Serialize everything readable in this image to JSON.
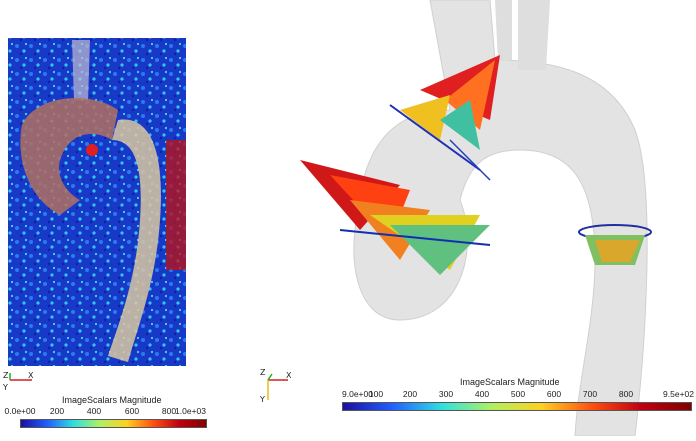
{
  "left_panel": {
    "colorbar": {
      "title": "ImageScalars Magnitude",
      "ticks": [
        "0.0e+00",
        "200",
        "400",
        "600",
        "800",
        "1.0e+03"
      ],
      "gradient": [
        "#1a10a0",
        "#2060ff",
        "#30e0e0",
        "#b0f060",
        "#ffd020",
        "#ff5010",
        "#c00010",
        "#800000"
      ]
    },
    "axes": {
      "x": "X",
      "y": "Y",
      "z": "Z"
    }
  },
  "right_panel": {
    "colorbar": {
      "title": "ImageScalars Magnitude",
      "ticks": [
        "9.0e+00",
        "100",
        "200",
        "300",
        "400",
        "500",
        "600",
        "700",
        "800",
        "9.5e+02"
      ],
      "gradient": [
        "#1a10a0",
        "#2060ff",
        "#30e0e0",
        "#b0f060",
        "#ffd020",
        "#ff5010",
        "#c00010",
        "#800000"
      ]
    },
    "axes": {
      "x": "X",
      "y": "Y",
      "z": "Z"
    }
  }
}
